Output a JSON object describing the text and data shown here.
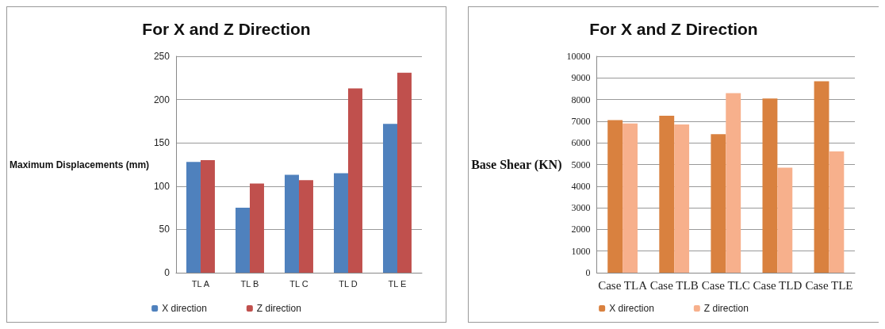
{
  "chart_data": [
    {
      "type": "bar",
      "title": "For X and Z Direction",
      "ylabel": "Maximum Displacements (mm)",
      "categories": [
        "TL A",
        "TL B",
        "TL C",
        "TL D",
        "TL E"
      ],
      "series": [
        {
          "name": "X direction",
          "color": "#4f81bd",
          "values": [
            128,
            75,
            113,
            115,
            172
          ]
        },
        {
          "name": "Z direction",
          "color": "#c0504d",
          "values": [
            130,
            103,
            107,
            213,
            231
          ]
        }
      ],
      "ylim": [
        0,
        250
      ],
      "yticks": [
        0,
        50,
        100,
        150,
        200,
        250
      ],
      "grid": "y",
      "legend": "bottom"
    },
    {
      "type": "bar",
      "title": "For X and Z Direction",
      "ylabel": "Base Shear (KN)",
      "categories": [
        "Case TLA",
        "Case TLB",
        "Case TLC",
        "Case TLD",
        "Case TLE"
      ],
      "series": [
        {
          "name": "X direction",
          "color": "#d9813f",
          "values": [
            7050,
            7250,
            6400,
            8050,
            8850
          ]
        },
        {
          "name": "Z direction",
          "color": "#f7b08c",
          "values": [
            6900,
            6850,
            8300,
            4850,
            5600
          ]
        }
      ],
      "ylim": [
        0,
        10000
      ],
      "yticks": [
        0,
        1000,
        2000,
        3000,
        4000,
        5000,
        6000,
        7000,
        8000,
        9000,
        10000
      ],
      "grid": "y",
      "legend": "bottom"
    }
  ]
}
